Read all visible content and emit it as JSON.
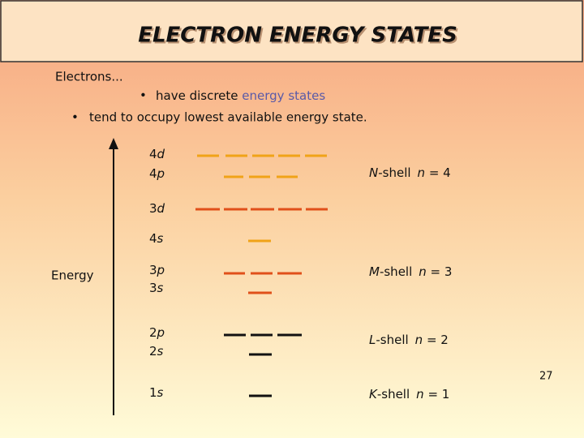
{
  "title": "ELECTRON ENERGY STATES",
  "intro": "Electrons...",
  "bullets": [
    {
      "text": "have discrete ",
      "highlight": "energy states"
    },
    {
      "text": "tend to occupy lowest available energy state."
    }
  ],
  "axis_label": "Energy",
  "levels": [
    {
      "n": "4",
      "l": "d"
    },
    {
      "n": "4",
      "l": "p"
    },
    {
      "n": "3",
      "l": "d"
    },
    {
      "n": "4",
      "l": "s"
    },
    {
      "n": "3",
      "l": "p"
    },
    {
      "n": "3",
      "l": "s"
    },
    {
      "n": "2",
      "l": "p"
    },
    {
      "n": "2",
      "l": "s"
    },
    {
      "n": "1",
      "l": "s"
    }
  ],
  "shells": [
    {
      "letter": "N",
      "suffix": "-shell",
      "var": "n",
      "eq": " = 4"
    },
    {
      "letter": "M",
      "suffix": "-shell",
      "var": "n",
      "eq": " = 3"
    },
    {
      "letter": "L",
      "suffix": "-shell",
      "var": "n",
      "eq": " = 2"
    },
    {
      "letter": "K",
      "suffix": "-shell",
      "var": "n",
      "eq": " = 1"
    }
  ],
  "page_number": "27"
}
